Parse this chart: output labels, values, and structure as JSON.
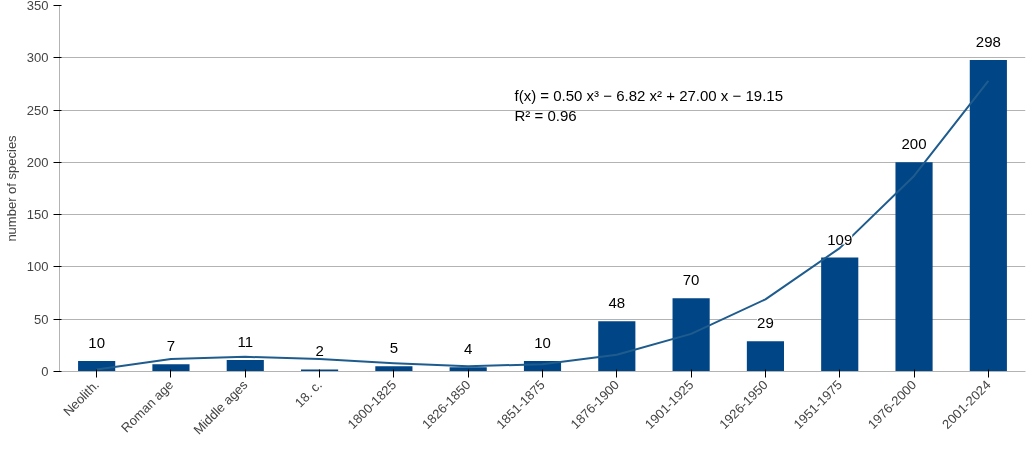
{
  "chart_data": {
    "type": "bar",
    "ylabel": "number of species",
    "categories": [
      "Neolith.",
      "Roman age",
      "Middle ages",
      "18. c.",
      "1800-1825",
      "1826-1850",
      "1851-1875",
      "1876-1900",
      "1901-1925",
      "1926-1950",
      "1951-1975",
      "1976-2000",
      "2001-2024"
    ],
    "series": [
      {
        "color": "#004586",
        "values": [
          10,
          7,
          11,
          2,
          5,
          4,
          10,
          48,
          70,
          29,
          109,
          200,
          298
        ],
        "value_labels": [
          "10",
          "7",
          "11",
          "2",
          "5",
          "4",
          "10",
          "48",
          "70",
          "29",
          "109",
          "200",
          "298"
        ]
      },
      {
        "type": "line",
        "color": "#1f5c8e",
        "values": [
          2,
          12,
          14,
          12,
          8,
          5,
          7,
          16,
          36,
          69,
          118,
          187,
          278
        ]
      }
    ],
    "ylim": [
      0,
      350
    ],
    "yticks": [
      0,
      50,
      100,
      150,
      200,
      250,
      300,
      350
    ],
    "grid": "y",
    "annotations": [
      "f(x) = 0.50 x³ − 6.82 x² + 27.00 x − 19.15",
      "R² = 0.96"
    ]
  }
}
